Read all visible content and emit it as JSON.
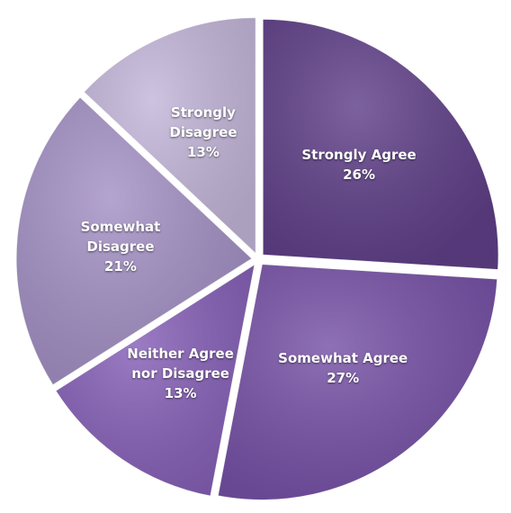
{
  "chart_data": {
    "type": "pie",
    "categories": [
      "Strongly Agree",
      "Somewhat Agree",
      "Neither Agree nor Disagree",
      "Somewhat Disagree",
      "Strongly Disagree"
    ],
    "values": [
      26,
      27,
      13,
      21,
      13
    ],
    "value_labels": [
      "26%",
      "27%",
      "13%",
      "21%",
      "13%"
    ],
    "colors": [
      "#5f3f88",
      "#7651a6",
      "#8660b7",
      "#a390c4",
      "#c3b6d9"
    ]
  }
}
